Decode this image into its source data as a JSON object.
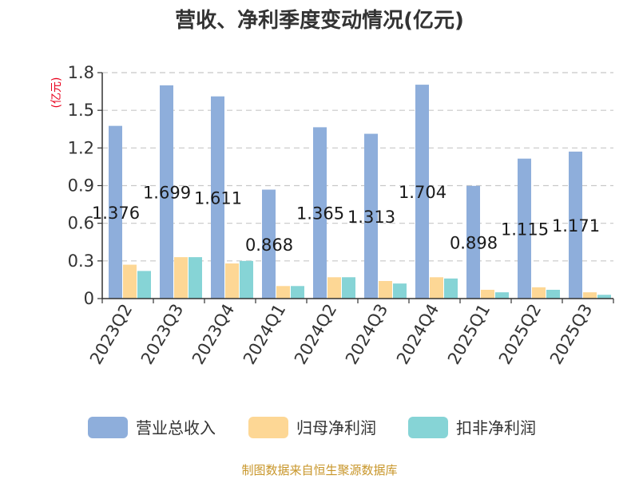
{
  "chart_data": {
    "type": "bar",
    "title": "营收、净利季度变动情况(亿元)",
    "ylabel": "(亿元)",
    "xlabel": "",
    "ylim": [
      0,
      1.8
    ],
    "yticks": [
      "0",
      "0.3",
      "0.6",
      "0.9",
      "1.2",
      "1.5",
      "1.8"
    ],
    "ytick_values": [
      0,
      0.3,
      0.6,
      0.9,
      1.2,
      1.5,
      1.8
    ],
    "grid": true,
    "legend_position": "bottom",
    "categories": [
      "2023Q2",
      "2023Q3",
      "2023Q4",
      "2024Q1",
      "2024Q2",
      "2024Q3",
      "2024Q4",
      "2025Q1",
      "2025Q2",
      "2025Q3"
    ],
    "series": [
      {
        "name": "营业总收入",
        "color": "#8eaedb",
        "values": [
          1.376,
          1.699,
          1.611,
          0.868,
          1.365,
          1.313,
          1.704,
          0.898,
          1.115,
          1.171
        ],
        "labels": [
          "1.376",
          "1.699",
          "1.611",
          "0.868",
          "1.365",
          "1.313",
          "1.704",
          "0.898",
          "1.115",
          "1.171"
        ]
      },
      {
        "name": "归母净利润",
        "color": "#fdd795",
        "values": [
          0.27,
          0.33,
          0.28,
          0.1,
          0.17,
          0.14,
          0.17,
          0.07,
          0.09,
          0.05
        ]
      },
      {
        "name": "扣非净利润",
        "color": "#86d4d6",
        "values": [
          0.22,
          0.33,
          0.3,
          0.1,
          0.17,
          0.12,
          0.16,
          0.05,
          0.07,
          0.03
        ]
      }
    ],
    "source": "制图数据来自恒生聚源数据库"
  }
}
